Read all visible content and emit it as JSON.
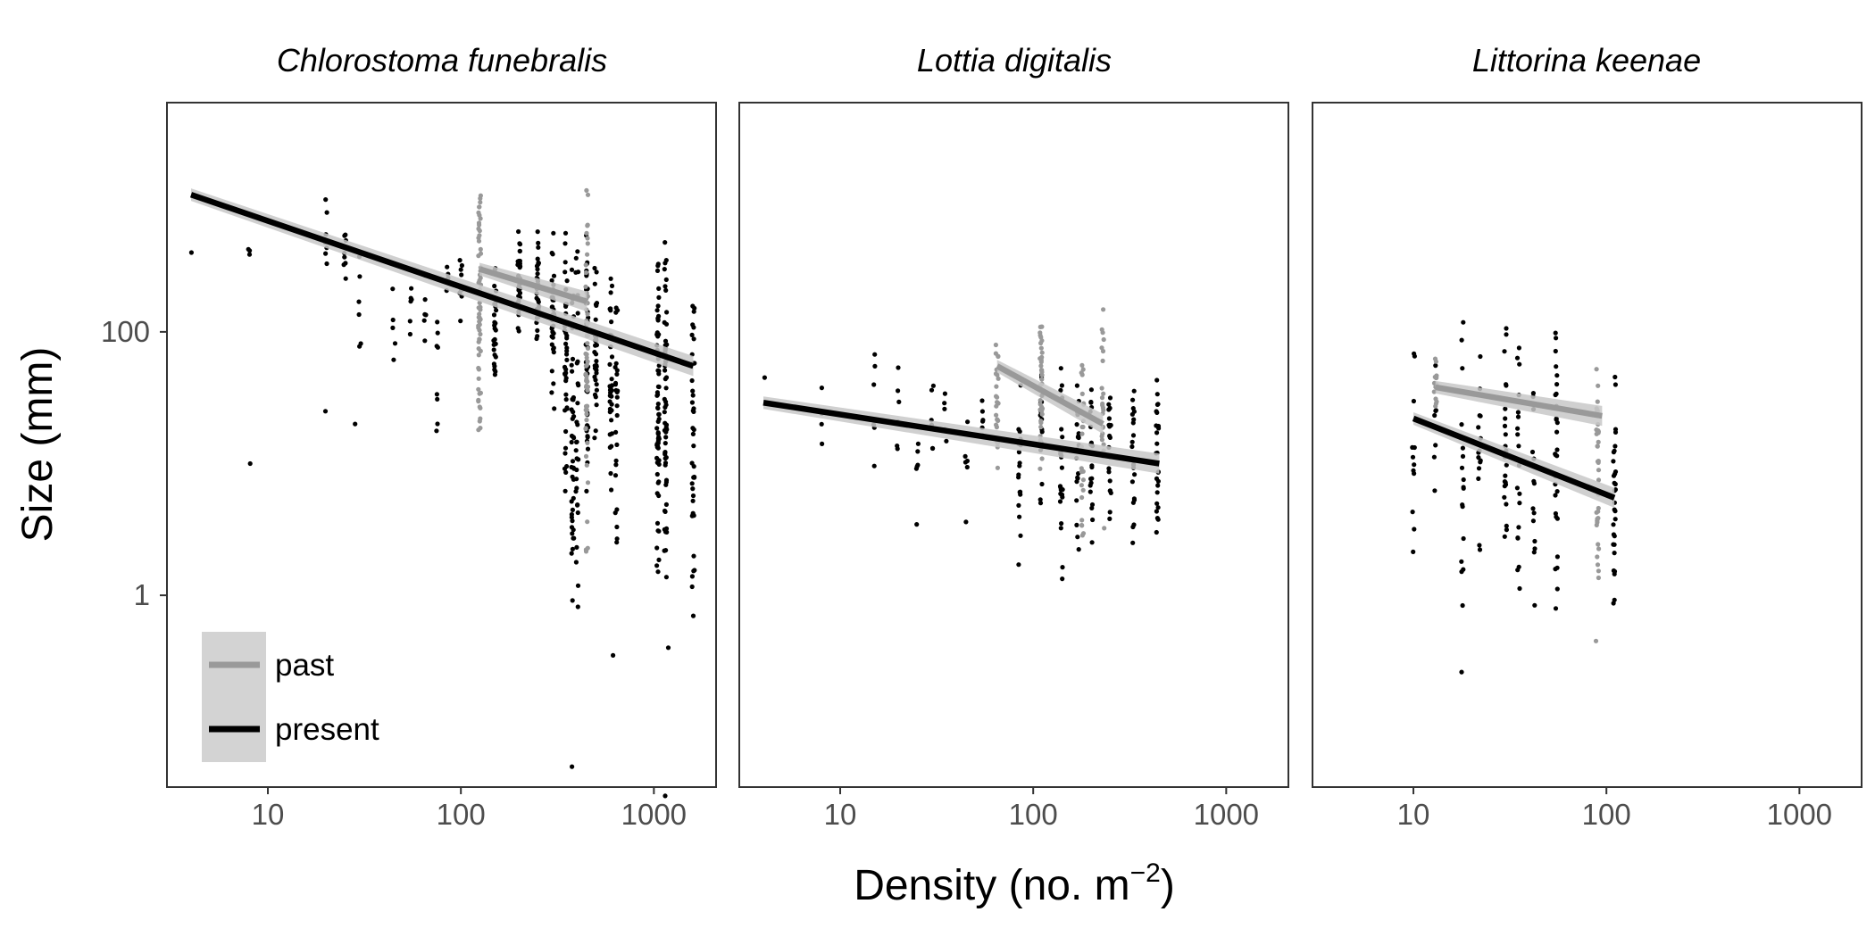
{
  "chart_data": {
    "type": "scatter",
    "title": "",
    "xlabel": "Density (no. m",
    "xlabel_superscript": "−2",
    "xlabel_suffix": ")",
    "ylabel": "Size (mm)",
    "x_scale": "log",
    "y_scale": "log",
    "xlim": [
      3,
      2100
    ],
    "ylim": [
      0.035,
      5500
    ],
    "x_ticks": [
      10,
      100,
      1000
    ],
    "x_tick_labels": [
      "10",
      "100",
      "1000"
    ],
    "y_ticks": [
      1,
      100
    ],
    "y_tick_labels": [
      "1",
      "100"
    ],
    "grid": false,
    "legend": {
      "placement": "bottom-left of first panel",
      "entries": [
        {
          "label": "past",
          "color": "#999999"
        },
        {
          "label": "present",
          "color": "#000000"
        }
      ]
    },
    "colors": {
      "past": "#999999",
      "present": "#000000",
      "ribbon": "#c8c8c8",
      "legend_key_bg": "#d3d3d3",
      "tick_text": "#4d4d4d"
    },
    "panels": [
      {
        "title": "Chlorostoma funebralis",
        "lines": {
          "present": {
            "x": [
              4,
              1600
            ],
            "y": [
              1100,
              55
            ]
          },
          "past": {
            "x": [
              125,
              450
            ],
            "y": [
              300,
              170
            ]
          }
        },
        "points": {
          "present": [
            {
              "x": 4,
              "ymin": 400,
              "ymax": 400,
              "n": 1
            },
            {
              "x": 8,
              "ymin": 380,
              "ymax": 430,
              "n": 3
            },
            {
              "x": 8,
              "ymin": 10,
              "ymax": 10,
              "n": 1
            },
            {
              "x": 20,
              "ymin": 190,
              "ymax": 1200,
              "n": 8
            },
            {
              "x": 20,
              "ymin": 25,
              "ymax": 25,
              "n": 1
            },
            {
              "x": 25,
              "ymin": 200,
              "ymax": 800,
              "n": 8
            },
            {
              "x": 28,
              "ymin": 20,
              "ymax": 20,
              "n": 1
            },
            {
              "x": 30,
              "ymin": 30,
              "ymax": 500,
              "n": 6
            },
            {
              "x": 45,
              "ymin": 45,
              "ymax": 260,
              "n": 5
            },
            {
              "x": 55,
              "ymin": 80,
              "ymax": 300,
              "n": 6
            },
            {
              "x": 65,
              "ymin": 60,
              "ymax": 350,
              "n": 6
            },
            {
              "x": 75,
              "ymin": 6,
              "ymax": 300,
              "n": 8
            },
            {
              "x": 85,
              "ymin": 200,
              "ymax": 350,
              "n": 5
            },
            {
              "x": 100,
              "ymin": 120,
              "ymax": 400,
              "n": 10
            },
            {
              "x": 150,
              "ymin": 30,
              "ymax": 400,
              "n": 28
            },
            {
              "x": 200,
              "ymin": 80,
              "ymax": 700,
              "n": 32
            },
            {
              "x": 250,
              "ymin": 60,
              "ymax": 650,
              "n": 30
            },
            {
              "x": 300,
              "ymin": 20,
              "ymax": 700,
              "n": 35
            },
            {
              "x": 350,
              "ymin": 5,
              "ymax": 700,
              "n": 40
            },
            {
              "x": 380,
              "ymin": 0.2,
              "ymax": 600,
              "n": 40
            },
            {
              "x": 400,
              "ymin": 0.3,
              "ymax": 650,
              "n": 30
            },
            {
              "x": 450,
              "ymin": 3,
              "ymax": 650,
              "n": 40
            },
            {
              "x": 500,
              "ymin": 10,
              "ymax": 550,
              "n": 35
            },
            {
              "x": 600,
              "ymin": 5,
              "ymax": 400,
              "n": 35
            },
            {
              "x": 640,
              "ymin": 1,
              "ymax": 400,
              "n": 25
            },
            {
              "x": 620,
              "ymin": 0.35,
              "ymax": 0.35,
              "n": 1
            },
            {
              "x": 380,
              "ymin": 0.05,
              "ymax": 0.05,
              "n": 1
            },
            {
              "x": 1050,
              "ymin": 1,
              "ymax": 600,
              "n": 70
            },
            {
              "x": 1150,
              "ymin": 1,
              "ymax": 550,
              "n": 60
            },
            {
              "x": 1200,
              "ymin": 0.4,
              "ymax": 0.4,
              "n": 1
            },
            {
              "x": 1150,
              "ymin": 0.03,
              "ymax": 0.03,
              "n": 1
            },
            {
              "x": 1600,
              "ymin": 0.5,
              "ymax": 380,
              "n": 40
            }
          ],
          "past": [
            {
              "x": 125,
              "ymin": 10,
              "ymax": 2200,
              "n": 60
            },
            {
              "x": 450,
              "ymin": 1.1,
              "ymax": 1700,
              "n": 55
            }
          ]
        }
      },
      {
        "title": "Lottia digitalis",
        "lines": {
          "present": {
            "x": [
              4,
              450
            ],
            "y": [
              29,
              10
            ]
          },
          "past": {
            "x": [
              65,
              230
            ],
            "y": [
              55,
              20
            ]
          }
        },
        "points": {
          "present": [
            {
              "x": 4,
              "ymin": 45,
              "ymax": 45,
              "n": 1
            },
            {
              "x": 8,
              "ymin": 7,
              "ymax": 57,
              "n": 4
            },
            {
              "x": 15,
              "ymin": 7,
              "ymax": 80,
              "n": 6
            },
            {
              "x": 20,
              "ymin": 10,
              "ymax": 70,
              "n": 6
            },
            {
              "x": 25,
              "ymin": 2.5,
              "ymax": 35,
              "n": 6
            },
            {
              "x": 30,
              "ymin": 10,
              "ymax": 50,
              "n": 6
            },
            {
              "x": 35,
              "ymin": 12,
              "ymax": 45,
              "n": 5
            },
            {
              "x": 45,
              "ymin": 3,
              "ymax": 40,
              "n": 6
            },
            {
              "x": 55,
              "ymin": 10,
              "ymax": 40,
              "n": 6
            },
            {
              "x": 85,
              "ymin": 1.5,
              "ymax": 60,
              "n": 18
            },
            {
              "x": 110,
              "ymin": 4,
              "ymax": 80,
              "n": 18
            },
            {
              "x": 140,
              "ymin": 1,
              "ymax": 70,
              "n": 25
            },
            {
              "x": 170,
              "ymin": 2,
              "ymax": 55,
              "n": 20
            },
            {
              "x": 200,
              "ymin": 2,
              "ymax": 60,
              "n": 20
            },
            {
              "x": 250,
              "ymin": 2.5,
              "ymax": 60,
              "n": 22
            },
            {
              "x": 330,
              "ymin": 1.5,
              "ymax": 55,
              "n": 22
            },
            {
              "x": 440,
              "ymin": 1.5,
              "ymax": 55,
              "n": 25
            }
          ],
          "past": [
            {
              "x": 65,
              "ymin": 9,
              "ymax": 100,
              "n": 25
            },
            {
              "x": 110,
              "ymin": 5,
              "ymax": 220,
              "n": 35
            },
            {
              "x": 180,
              "ymin": 2,
              "ymax": 90,
              "n": 25
            },
            {
              "x": 230,
              "ymin": 3,
              "ymax": 180,
              "n": 25
            }
          ]
        }
      },
      {
        "title": "Littorina keenae",
        "lines": {
          "present": {
            "x": [
              10,
              110
            ],
            "y": [
              22,
              5.5
            ]
          },
          "past": {
            "x": [
              13,
              95
            ],
            "y": [
              38,
              23
            ]
          }
        },
        "points": {
          "present": [
            {
              "x": 10,
              "ymin": 0.5,
              "ymax": 100,
              "n": 12
            },
            {
              "x": 13,
              "ymin": 5,
              "ymax": 60,
              "n": 8
            },
            {
              "x": 18,
              "ymin": 0.25,
              "ymax": 160,
              "n": 18
            },
            {
              "x": 22,
              "ymin": 1,
              "ymax": 100,
              "n": 15
            },
            {
              "x": 30,
              "ymin": 0.7,
              "ymax": 170,
              "n": 25
            },
            {
              "x": 35,
              "ymin": 1,
              "ymax": 120,
              "n": 20
            },
            {
              "x": 42,
              "ymin": 0.35,
              "ymax": 75,
              "n": 15
            },
            {
              "x": 55,
              "ymin": 0.7,
              "ymax": 130,
              "n": 30
            },
            {
              "x": 110,
              "ymin": 0.3,
              "ymax": 60,
              "n": 30
            }
          ],
          "past": [
            {
              "x": 13,
              "ymin": 20,
              "ymax": 75,
              "n": 15
            },
            {
              "x": 90,
              "ymin": 1,
              "ymax": 70,
              "n": 35
            },
            {
              "x": 88,
              "ymin": 0.45,
              "ymax": 0.45,
              "n": 1
            }
          ]
        }
      }
    ]
  }
}
